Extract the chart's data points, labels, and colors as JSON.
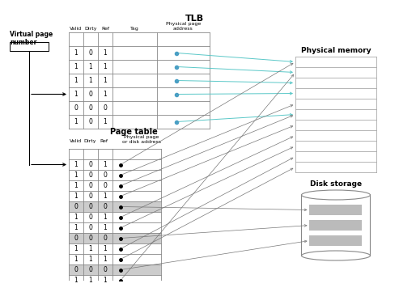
{
  "title": "TLB",
  "bg_color": "#ffffff",
  "tlb_rows": [
    [
      "1",
      "0",
      "1"
    ],
    [
      "1",
      "1",
      "1"
    ],
    [
      "1",
      "1",
      "1"
    ],
    [
      "1",
      "0",
      "1"
    ],
    [
      "0",
      "0",
      "0"
    ],
    [
      "1",
      "0",
      "1"
    ]
  ],
  "tlb_dot_rows": [
    0,
    1,
    2,
    3,
    5
  ],
  "pt_rows": [
    [
      "1",
      "0",
      "1"
    ],
    [
      "1",
      "0",
      "0"
    ],
    [
      "1",
      "0",
      "0"
    ],
    [
      "1",
      "0",
      "1"
    ],
    [
      "0",
      "0",
      "0"
    ],
    [
      "1",
      "0",
      "1"
    ],
    [
      "1",
      "0",
      "1"
    ],
    [
      "0",
      "0",
      "0"
    ],
    [
      "1",
      "1",
      "1"
    ],
    [
      "1",
      "1",
      "1"
    ],
    [
      "0",
      "0",
      "0"
    ],
    [
      "1",
      "1",
      "1"
    ]
  ],
  "pt_gray_rows": [
    4,
    7,
    10
  ],
  "phys_mem_label": "Physical memory",
  "phys_mem_rows": 11,
  "disk_label": "Disk storage",
  "arrow_color_tlb": "#5bc8c8",
  "arrow_color_pt": "#777777"
}
